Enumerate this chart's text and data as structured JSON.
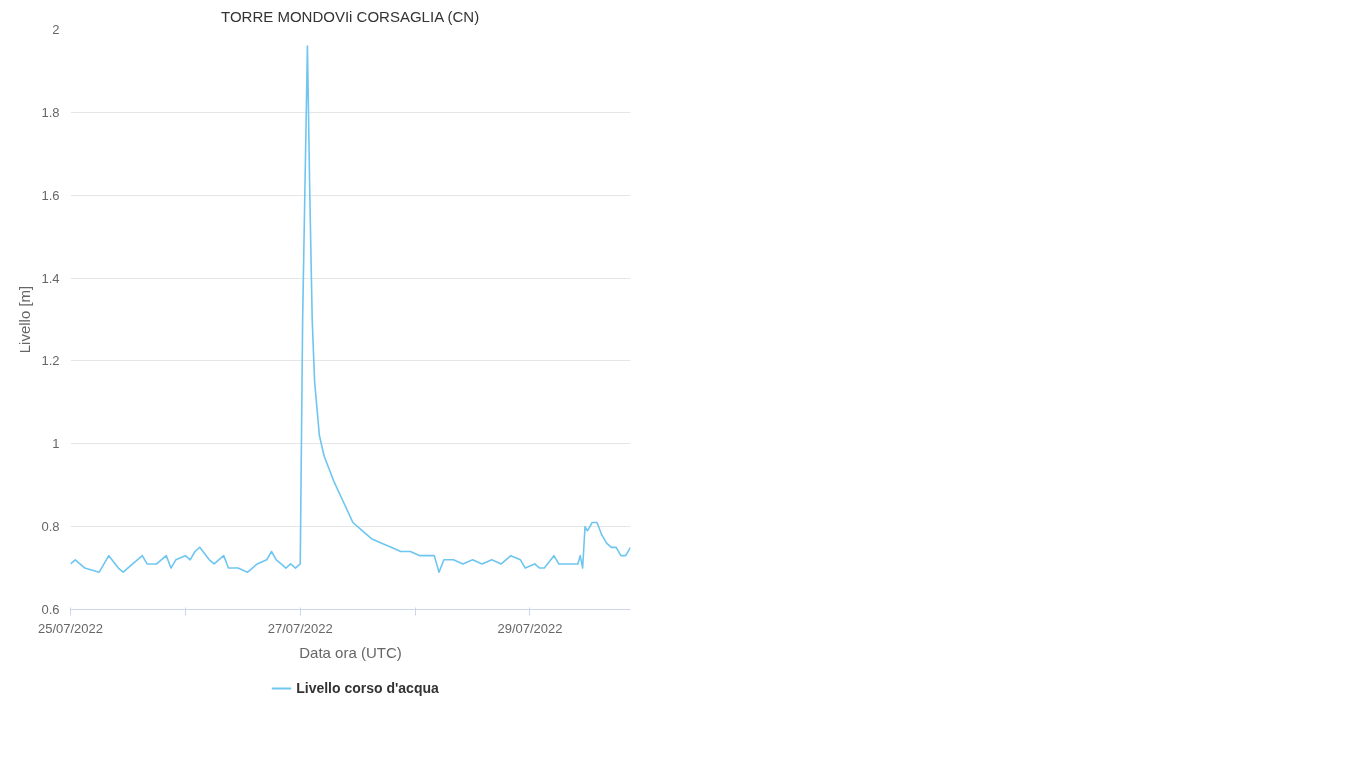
{
  "chart_data": {
    "type": "line",
    "title": "TORRE MONDOVIi CORSAGLIA (CN)",
    "xlabel": "Data ora (UTC)",
    "ylabel": "Livello [m]",
    "xlim": [
      "2022-07-25T00:00",
      "2022-07-29T21:00"
    ],
    "xticks": [
      {
        "value": "2022-07-25",
        "label": "25/07/2022"
      },
      {
        "value": "2022-07-26",
        "label": null
      },
      {
        "value": "2022-07-27",
        "label": "27/07/2022"
      },
      {
        "value": "2022-07-28",
        "label": null
      },
      {
        "value": "2022-07-29",
        "label": "29/07/2022"
      }
    ],
    "ylim": [
      0.6,
      2
    ],
    "yticks": [
      0.6,
      0.8,
      1,
      1.2,
      1.4,
      1.6,
      1.8,
      2
    ],
    "grid": "y",
    "legend": "bottom",
    "marker": "none",
    "line_style": "solid",
    "x": [
      "2022-07-25T00:00",
      "2022-07-25T01:00",
      "2022-07-25T03:00",
      "2022-07-25T06:00",
      "2022-07-25T08:00",
      "2022-07-25T10:00",
      "2022-07-25T11:00",
      "2022-07-25T13:00",
      "2022-07-25T15:00",
      "2022-07-25T16:00",
      "2022-07-25T18:00",
      "2022-07-25T20:00",
      "2022-07-25T21:00",
      "2022-07-25T22:00",
      "2022-07-26T00:00",
      "2022-07-26T01:00",
      "2022-07-26T02:00",
      "2022-07-26T03:00",
      "2022-07-26T05:00",
      "2022-07-26T06:00",
      "2022-07-26T08:00",
      "2022-07-26T09:00",
      "2022-07-26T11:00",
      "2022-07-26T13:00",
      "2022-07-26T14:00",
      "2022-07-26T15:00",
      "2022-07-26T17:00",
      "2022-07-26T18:00",
      "2022-07-26T19:00",
      "2022-07-26T20:00",
      "2022-07-26T21:00",
      "2022-07-26T22:00",
      "2022-07-26T23:00",
      "2022-07-27T00:00",
      "2022-07-27T00:30",
      "2022-07-27T01:30",
      "2022-07-27T02:00",
      "2022-07-27T02:30",
      "2022-07-27T03:00",
      "2022-07-27T04:00",
      "2022-07-27T05:00",
      "2022-07-27T07:00",
      "2022-07-27T09:00",
      "2022-07-27T11:00",
      "2022-07-27T13:00",
      "2022-07-27T15:00",
      "2022-07-27T17:00",
      "2022-07-27T19:00",
      "2022-07-27T21:00",
      "2022-07-27T23:00",
      "2022-07-28T01:00",
      "2022-07-28T03:00",
      "2022-07-28T04:00",
      "2022-07-28T05:00",
      "2022-07-28T06:00",
      "2022-07-28T08:00",
      "2022-07-28T10:00",
      "2022-07-28T12:00",
      "2022-07-28T14:00",
      "2022-07-28T16:00",
      "2022-07-28T18:00",
      "2022-07-28T20:00",
      "2022-07-28T22:00",
      "2022-07-28T23:00",
      "2022-07-29T01:00",
      "2022-07-29T02:00",
      "2022-07-29T03:00",
      "2022-07-29T05:00",
      "2022-07-29T06:00",
      "2022-07-29T10:00",
      "2022-07-29T10:30",
      "2022-07-29T11:00",
      "2022-07-29T11:30",
      "2022-07-29T12:00",
      "2022-07-29T13:00",
      "2022-07-29T14:00",
      "2022-07-29T15:00",
      "2022-07-29T16:00",
      "2022-07-29T17:00",
      "2022-07-29T18:00",
      "2022-07-29T19:00",
      "2022-07-29T20:00",
      "2022-07-29T21:00"
    ],
    "series": [
      {
        "name": "Livello corso d'acqua",
        "color": "#6ec6f0",
        "values": [
          0.71,
          0.72,
          0.7,
          0.69,
          0.73,
          0.7,
          0.69,
          0.71,
          0.73,
          0.71,
          0.71,
          0.73,
          0.7,
          0.72,
          0.73,
          0.72,
          0.74,
          0.75,
          0.72,
          0.71,
          0.73,
          0.7,
          0.7,
          0.69,
          0.7,
          0.71,
          0.72,
          0.74,
          0.72,
          0.71,
          0.7,
          0.71,
          0.7,
          0.71,
          1.3,
          1.96,
          1.6,
          1.3,
          1.15,
          1.02,
          0.97,
          0.91,
          0.86,
          0.81,
          0.79,
          0.77,
          0.76,
          0.75,
          0.74,
          0.74,
          0.73,
          0.73,
          0.73,
          0.69,
          0.72,
          0.72,
          0.71,
          0.72,
          0.71,
          0.72,
          0.71,
          0.73,
          0.72,
          0.7,
          0.71,
          0.7,
          0.7,
          0.73,
          0.71,
          0.71,
          0.73,
          0.7,
          0.8,
          0.79,
          0.81,
          0.81,
          0.78,
          0.76,
          0.75,
          0.75,
          0.73,
          0.73,
          0.75
        ]
      }
    ]
  }
}
